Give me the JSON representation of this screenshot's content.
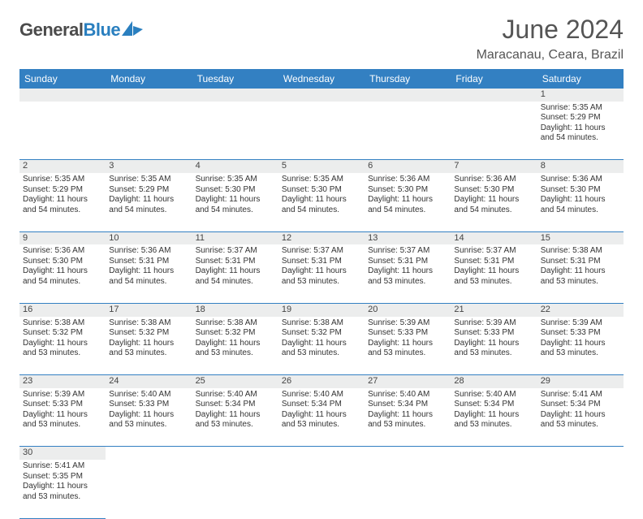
{
  "logo": {
    "general": "General",
    "blue": "Blue"
  },
  "header": {
    "title": "June 2024",
    "location": "Maracanau, Ceara, Brazil"
  },
  "colors": {
    "header_bg": "#3380c2",
    "header_fg": "#ffffff",
    "daynum_bg": "#eceded",
    "border": "#3380c2"
  },
  "weekdays": [
    "Sunday",
    "Monday",
    "Tuesday",
    "Wednesday",
    "Thursday",
    "Friday",
    "Saturday"
  ],
  "days": {
    "1": {
      "sunrise": "Sunrise: 5:35 AM",
      "sunset": "Sunset: 5:29 PM",
      "daylight": "Daylight: 11 hours and 54 minutes."
    },
    "2": {
      "sunrise": "Sunrise: 5:35 AM",
      "sunset": "Sunset: 5:29 PM",
      "daylight": "Daylight: 11 hours and 54 minutes."
    },
    "3": {
      "sunrise": "Sunrise: 5:35 AM",
      "sunset": "Sunset: 5:29 PM",
      "daylight": "Daylight: 11 hours and 54 minutes."
    },
    "4": {
      "sunrise": "Sunrise: 5:35 AM",
      "sunset": "Sunset: 5:30 PM",
      "daylight": "Daylight: 11 hours and 54 minutes."
    },
    "5": {
      "sunrise": "Sunrise: 5:35 AM",
      "sunset": "Sunset: 5:30 PM",
      "daylight": "Daylight: 11 hours and 54 minutes."
    },
    "6": {
      "sunrise": "Sunrise: 5:36 AM",
      "sunset": "Sunset: 5:30 PM",
      "daylight": "Daylight: 11 hours and 54 minutes."
    },
    "7": {
      "sunrise": "Sunrise: 5:36 AM",
      "sunset": "Sunset: 5:30 PM",
      "daylight": "Daylight: 11 hours and 54 minutes."
    },
    "8": {
      "sunrise": "Sunrise: 5:36 AM",
      "sunset": "Sunset: 5:30 PM",
      "daylight": "Daylight: 11 hours and 54 minutes."
    },
    "9": {
      "sunrise": "Sunrise: 5:36 AM",
      "sunset": "Sunset: 5:30 PM",
      "daylight": "Daylight: 11 hours and 54 minutes."
    },
    "10": {
      "sunrise": "Sunrise: 5:36 AM",
      "sunset": "Sunset: 5:31 PM",
      "daylight": "Daylight: 11 hours and 54 minutes."
    },
    "11": {
      "sunrise": "Sunrise: 5:37 AM",
      "sunset": "Sunset: 5:31 PM",
      "daylight": "Daylight: 11 hours and 54 minutes."
    },
    "12": {
      "sunrise": "Sunrise: 5:37 AM",
      "sunset": "Sunset: 5:31 PM",
      "daylight": "Daylight: 11 hours and 53 minutes."
    },
    "13": {
      "sunrise": "Sunrise: 5:37 AM",
      "sunset": "Sunset: 5:31 PM",
      "daylight": "Daylight: 11 hours and 53 minutes."
    },
    "14": {
      "sunrise": "Sunrise: 5:37 AM",
      "sunset": "Sunset: 5:31 PM",
      "daylight": "Daylight: 11 hours and 53 minutes."
    },
    "15": {
      "sunrise": "Sunrise: 5:38 AM",
      "sunset": "Sunset: 5:31 PM",
      "daylight": "Daylight: 11 hours and 53 minutes."
    },
    "16": {
      "sunrise": "Sunrise: 5:38 AM",
      "sunset": "Sunset: 5:32 PM",
      "daylight": "Daylight: 11 hours and 53 minutes."
    },
    "17": {
      "sunrise": "Sunrise: 5:38 AM",
      "sunset": "Sunset: 5:32 PM",
      "daylight": "Daylight: 11 hours and 53 minutes."
    },
    "18": {
      "sunrise": "Sunrise: 5:38 AM",
      "sunset": "Sunset: 5:32 PM",
      "daylight": "Daylight: 11 hours and 53 minutes."
    },
    "19": {
      "sunrise": "Sunrise: 5:38 AM",
      "sunset": "Sunset: 5:32 PM",
      "daylight": "Daylight: 11 hours and 53 minutes."
    },
    "20": {
      "sunrise": "Sunrise: 5:39 AM",
      "sunset": "Sunset: 5:33 PM",
      "daylight": "Daylight: 11 hours and 53 minutes."
    },
    "21": {
      "sunrise": "Sunrise: 5:39 AM",
      "sunset": "Sunset: 5:33 PM",
      "daylight": "Daylight: 11 hours and 53 minutes."
    },
    "22": {
      "sunrise": "Sunrise: 5:39 AM",
      "sunset": "Sunset: 5:33 PM",
      "daylight": "Daylight: 11 hours and 53 minutes."
    },
    "23": {
      "sunrise": "Sunrise: 5:39 AM",
      "sunset": "Sunset: 5:33 PM",
      "daylight": "Daylight: 11 hours and 53 minutes."
    },
    "24": {
      "sunrise": "Sunrise: 5:40 AM",
      "sunset": "Sunset: 5:33 PM",
      "daylight": "Daylight: 11 hours and 53 minutes."
    },
    "25": {
      "sunrise": "Sunrise: 5:40 AM",
      "sunset": "Sunset: 5:34 PM",
      "daylight": "Daylight: 11 hours and 53 minutes."
    },
    "26": {
      "sunrise": "Sunrise: 5:40 AM",
      "sunset": "Sunset: 5:34 PM",
      "daylight": "Daylight: 11 hours and 53 minutes."
    },
    "27": {
      "sunrise": "Sunrise: 5:40 AM",
      "sunset": "Sunset: 5:34 PM",
      "daylight": "Daylight: 11 hours and 53 minutes."
    },
    "28": {
      "sunrise": "Sunrise: 5:40 AM",
      "sunset": "Sunset: 5:34 PM",
      "daylight": "Daylight: 11 hours and 53 minutes."
    },
    "29": {
      "sunrise": "Sunrise: 5:41 AM",
      "sunset": "Sunset: 5:34 PM",
      "daylight": "Daylight: 11 hours and 53 minutes."
    },
    "30": {
      "sunrise": "Sunrise: 5:41 AM",
      "sunset": "Sunset: 5:35 PM",
      "daylight": "Daylight: 11 hours and 53 minutes."
    }
  },
  "layout": {
    "first_weekday_index": 6,
    "days_in_month": 30,
    "weeks": 6
  }
}
